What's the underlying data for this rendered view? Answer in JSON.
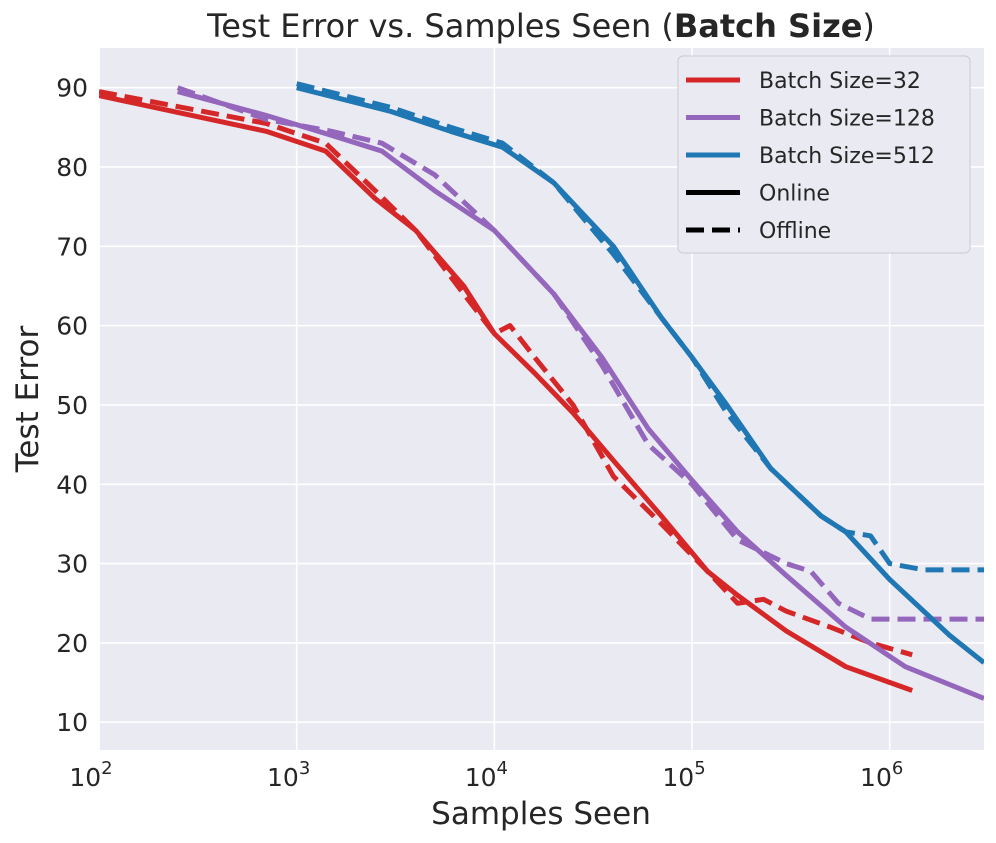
{
  "chart_data": {
    "type": "line",
    "title_prefix": "Test Error vs. Samples Seen (",
    "title_bold": "Batch Size",
    "title_suffix": ")",
    "xlabel": "Samples Seen",
    "ylabel": "Test Error",
    "xscale": "log",
    "xlim": [
      100,
      3000000
    ],
    "ylim": [
      6.5,
      95
    ],
    "grid": true,
    "legend_position": "top-right",
    "xticks": [
      {
        "value": 100,
        "base": "10",
        "exp": "2"
      },
      {
        "value": 1000,
        "base": "10",
        "exp": "3"
      },
      {
        "value": 10000,
        "base": "10",
        "exp": "4"
      },
      {
        "value": 100000,
        "base": "10",
        "exp": "5"
      },
      {
        "value": 1000000,
        "base": "10",
        "exp": "6"
      }
    ],
    "yticks": [
      10,
      20,
      30,
      40,
      50,
      60,
      70,
      80,
      90
    ],
    "legend": [
      {
        "label": "Batch Size=32",
        "color": "#d62728",
        "style": "solid"
      },
      {
        "label": "Batch Size=128",
        "color": "#9467bd",
        "style": "solid"
      },
      {
        "label": "Batch Size=512",
        "color": "#1f77b4",
        "style": "solid"
      },
      {
        "label": "Online",
        "color": "#000000",
        "style": "solid"
      },
      {
        "label": "Offline",
        "color": "#000000",
        "style": "dashed"
      }
    ],
    "series": [
      {
        "name": "Batch Size=32",
        "mode": "Online",
        "color": "#d62728",
        "dashed": false,
        "points": [
          [
            100,
            89
          ],
          [
            700,
            84.5
          ],
          [
            1400,
            82
          ],
          [
            2500,
            76
          ],
          [
            4000,
            72
          ],
          [
            7000,
            65
          ],
          [
            10000,
            59
          ],
          [
            16000,
            54
          ],
          [
            25000,
            49
          ],
          [
            40000,
            43
          ],
          [
            70000,
            36
          ],
          [
            120000,
            29
          ],
          [
            170000,
            26
          ],
          [
            300000,
            21.5
          ],
          [
            600000,
            17
          ],
          [
            1300000,
            14
          ]
        ]
      },
      {
        "name": "Batch Size=32",
        "mode": "Offline",
        "color": "#d62728",
        "dashed": true,
        "points": [
          [
            100,
            89.5
          ],
          [
            700,
            85.5
          ],
          [
            1400,
            83
          ],
          [
            2500,
            77
          ],
          [
            4000,
            72
          ],
          [
            7000,
            64
          ],
          [
            10000,
            59
          ],
          [
            12000,
            60
          ],
          [
            16000,
            56
          ],
          [
            25000,
            50
          ],
          [
            40000,
            41
          ],
          [
            70000,
            35
          ],
          [
            120000,
            29
          ],
          [
            170000,
            25
          ],
          [
            230000,
            25.5
          ],
          [
            300000,
            24
          ],
          [
            500000,
            22
          ],
          [
            800000,
            20
          ],
          [
            1300000,
            18.5
          ]
        ]
      },
      {
        "name": "Batch Size=128",
        "mode": "Online",
        "color": "#9467bd",
        "dashed": false,
        "points": [
          [
            250,
            89.5
          ],
          [
            700,
            86.5
          ],
          [
            1500,
            84
          ],
          [
            2700,
            82
          ],
          [
            5000,
            77
          ],
          [
            10000,
            72
          ],
          [
            20000,
            64
          ],
          [
            35000,
            56
          ],
          [
            60000,
            47
          ],
          [
            100000,
            40.5
          ],
          [
            170000,
            34
          ],
          [
            300000,
            28.5
          ],
          [
            600000,
            22
          ],
          [
            1200000,
            17
          ],
          [
            3000000,
            13
          ]
        ]
      },
      {
        "name": "Batch Size=128",
        "mode": "Offline",
        "color": "#9467bd",
        "dashed": true,
        "points": [
          [
            250,
            90
          ],
          [
            700,
            86
          ],
          [
            1500,
            84.5
          ],
          [
            2700,
            83
          ],
          [
            5000,
            79
          ],
          [
            10000,
            72
          ],
          [
            20000,
            64
          ],
          [
            35000,
            55
          ],
          [
            60000,
            45
          ],
          [
            100000,
            40
          ],
          [
            170000,
            33
          ],
          [
            300000,
            30
          ],
          [
            400000,
            29
          ],
          [
            550000,
            25
          ],
          [
            800000,
            23
          ],
          [
            1500000,
            23
          ],
          [
            3000000,
            23
          ]
        ]
      },
      {
        "name": "Batch Size=512",
        "mode": "Online",
        "color": "#1f77b4",
        "dashed": false,
        "points": [
          [
            1000,
            90
          ],
          [
            3000,
            87
          ],
          [
            6000,
            84.5
          ],
          [
            11000,
            82.5
          ],
          [
            20000,
            78
          ],
          [
            40000,
            70
          ],
          [
            70000,
            61
          ],
          [
            100000,
            56
          ],
          [
            150000,
            50
          ],
          [
            250000,
            42
          ],
          [
            450000,
            36
          ],
          [
            600000,
            34
          ],
          [
            1000000,
            28
          ],
          [
            2000000,
            21
          ],
          [
            3000000,
            17.5
          ]
        ]
      },
      {
        "name": "Batch Size=512",
        "mode": "Offline",
        "color": "#1f77b4",
        "dashed": true,
        "points": [
          [
            1000,
            90.5
          ],
          [
            3000,
            87.5
          ],
          [
            6000,
            85
          ],
          [
            11000,
            83
          ],
          [
            20000,
            78
          ],
          [
            40000,
            69
          ],
          [
            70000,
            61
          ],
          [
            100000,
            56
          ],
          [
            150000,
            49
          ],
          [
            250000,
            42
          ],
          [
            450000,
            36
          ],
          [
            600000,
            34
          ],
          [
            800000,
            33.5
          ],
          [
            1000000,
            30
          ],
          [
            1500000,
            29.2
          ],
          [
            3000000,
            29.2
          ]
        ]
      }
    ]
  }
}
